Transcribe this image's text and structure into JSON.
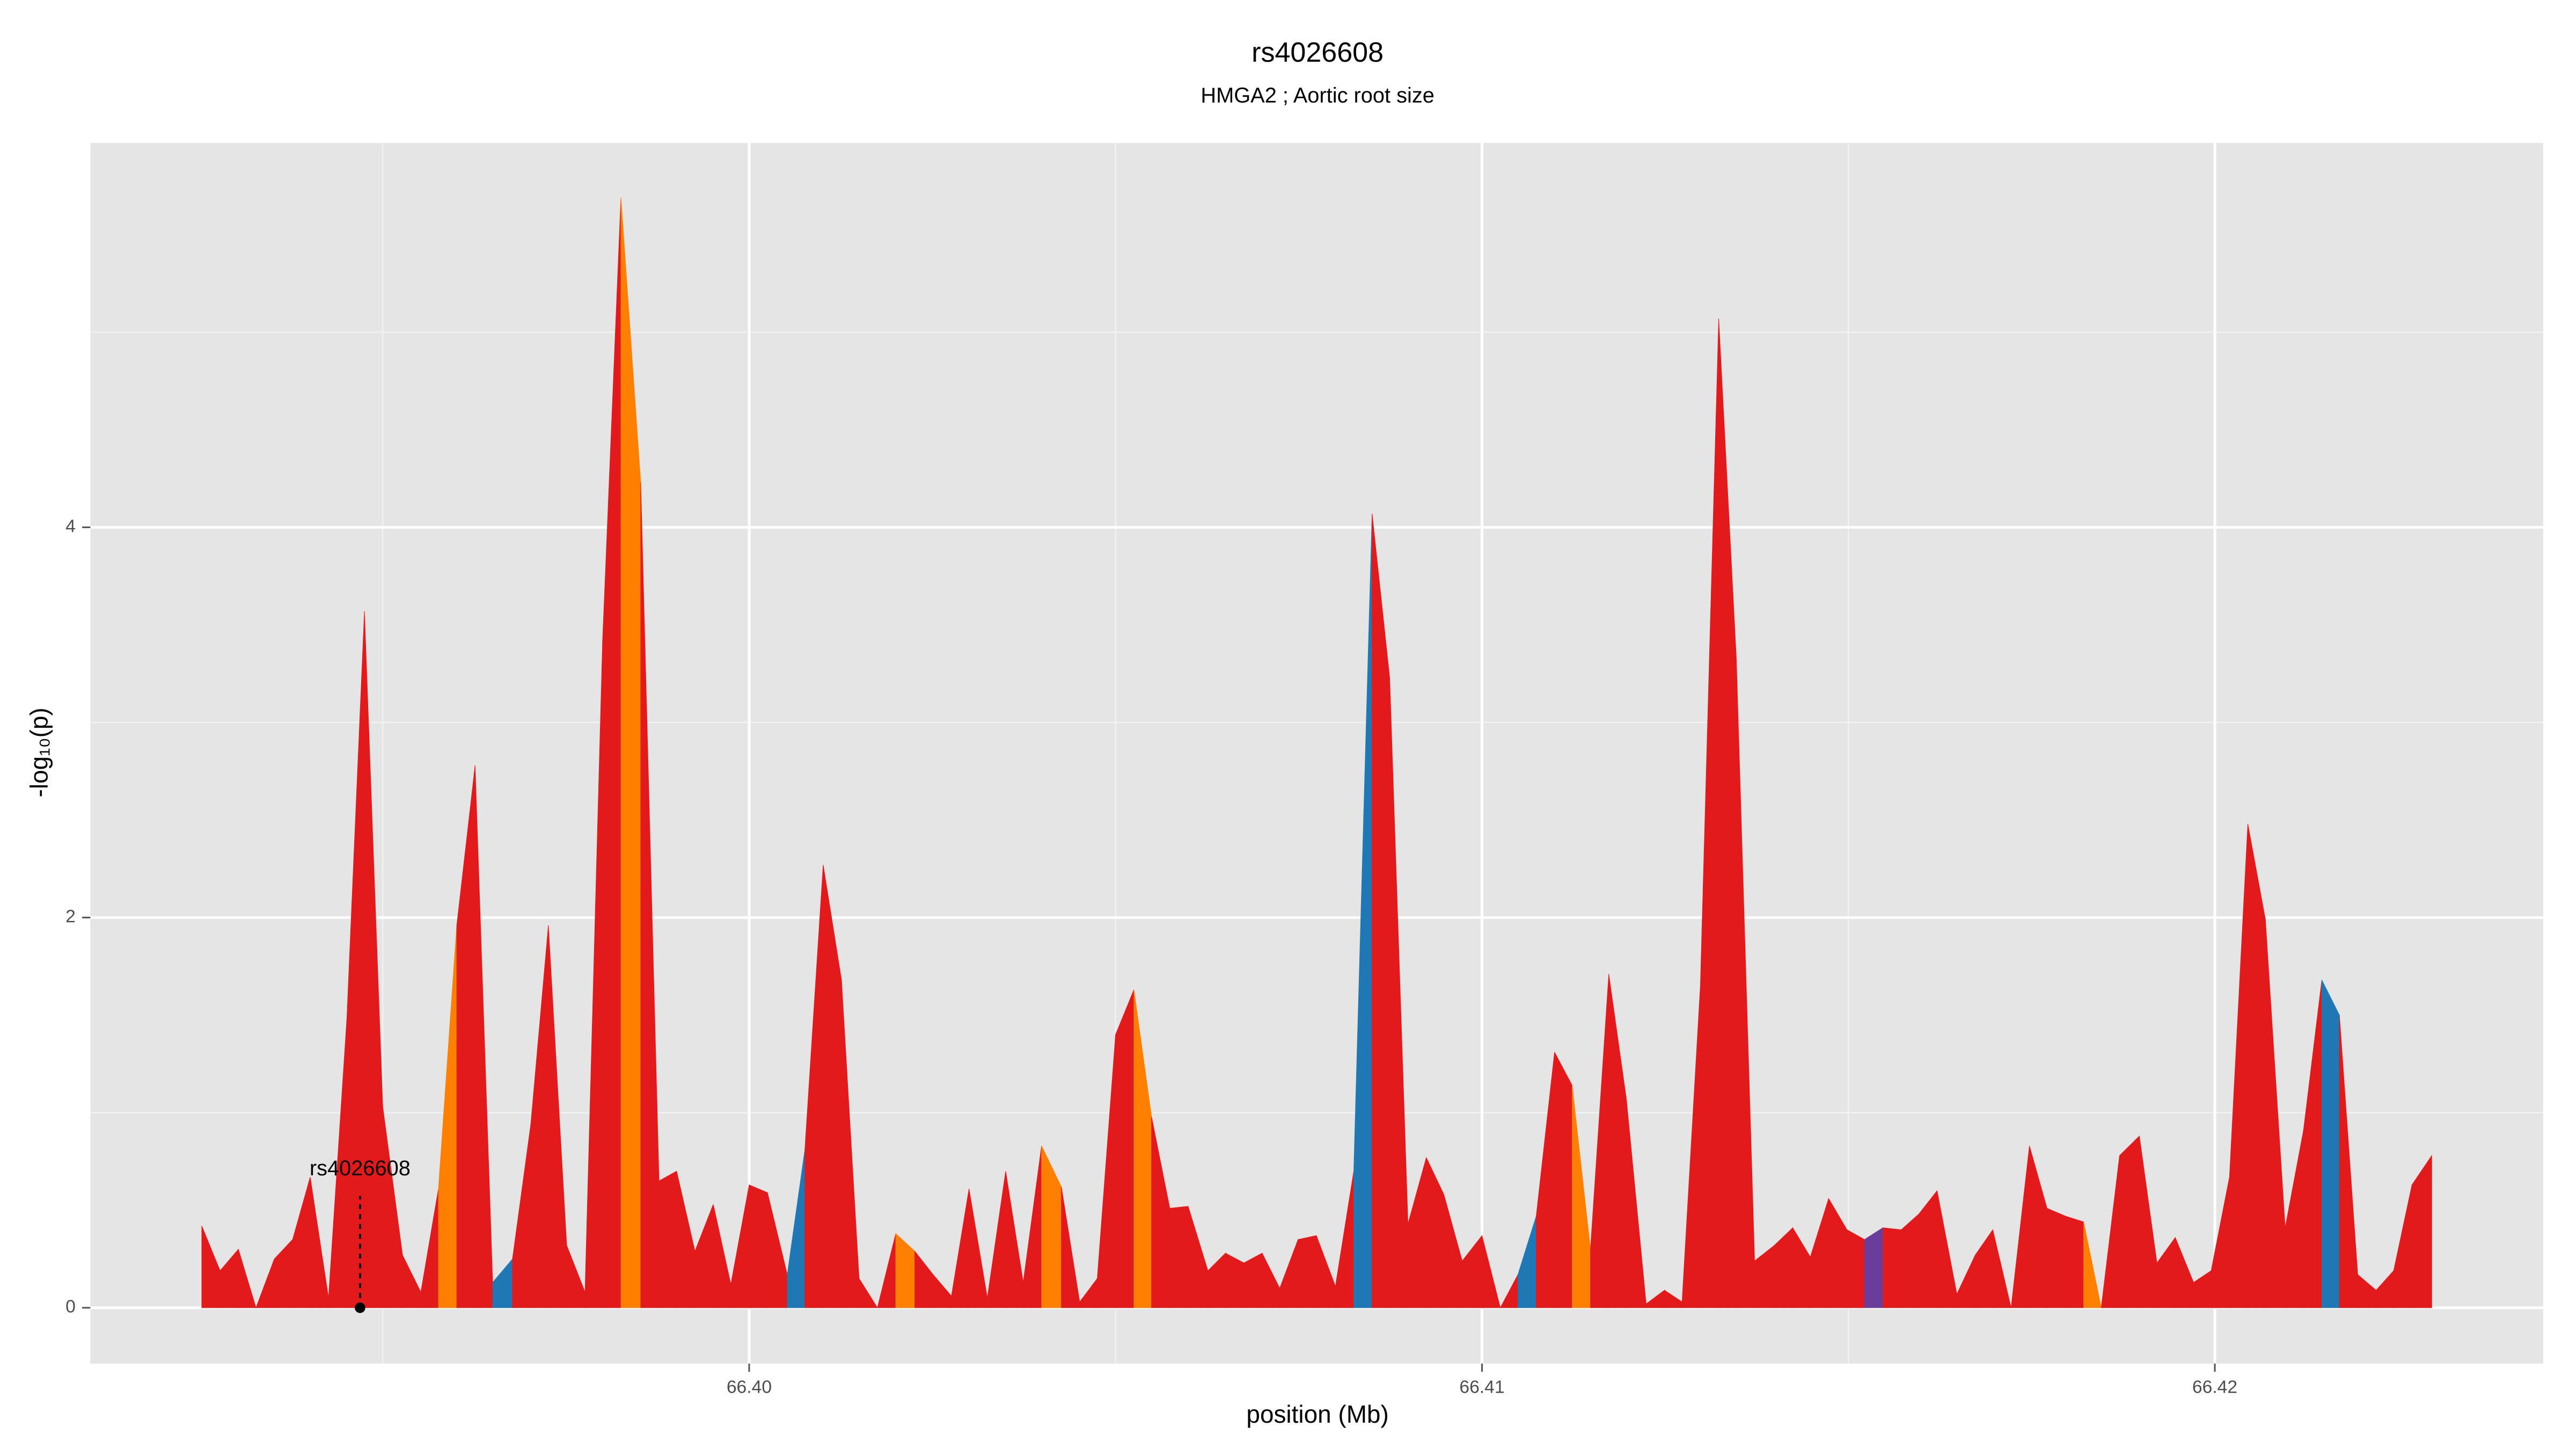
{
  "chart_data": {
    "type": "area",
    "title": "rs4026608",
    "subtitle": "HMGA2 ; Aortic root size",
    "x_label": "position (Mb)",
    "y_label": "-log₁₀(p)",
    "xlim": [
      66.39101,
      66.42448
    ],
    "ylim": [
      -0.286,
      5.97
    ],
    "xticks": [
      {
        "value": 66.4,
        "label": "66.40"
      },
      66.41,
      66.42
    ],
    "x_minor_ticks": [
      66.395,
      66.405,
      66.415
    ],
    "yticks": [
      0,
      2,
      4
    ],
    "y_minor_ticks": [
      1,
      3,
      5
    ],
    "grid": true,
    "background": "#e5e5e5",
    "annotation": {
      "text": "rs4026608",
      "x": 66.39469
    },
    "x": [
      66.39253,
      66.39278,
      66.39303,
      66.39327,
      66.39352,
      66.39377,
      66.39401,
      66.39426,
      66.39451,
      66.39475,
      66.395,
      66.39527,
      66.39552,
      66.39576,
      66.39601,
      66.39626,
      66.3965,
      66.39677,
      66.39702,
      66.39726,
      66.39751,
      66.39776,
      66.398,
      66.39825,
      66.39852,
      66.39877,
      66.39901,
      66.39926,
      66.39951,
      66.39975,
      66.4,
      66.40025,
      66.40052,
      66.40076,
      66.40101,
      66.40126,
      66.4015,
      66.40175,
      66.402,
      66.40226,
      66.40251,
      66.40276,
      66.403,
      66.40325,
      66.4035,
      66.40374,
      66.40399,
      66.40426,
      66.40451,
      66.40475,
      66.405,
      66.40525,
      66.40549,
      66.40574,
      66.40599,
      66.40626,
      66.4065,
      66.40675,
      66.407,
      66.40724,
      66.40749,
      66.40774,
      66.408,
      66.40825,
      66.4085,
      66.40874,
      66.40899,
      66.40924,
      66.40948,
      66.40973,
      66.41,
      66.41025,
      66.41049,
      66.41074,
      66.41099,
      66.41123,
      66.41148,
      66.41173,
      66.41197,
      66.41224,
      66.41249,
      66.41273,
      66.41298,
      66.41323,
      66.41347,
      66.41372,
      66.41399,
      66.41424,
      66.41448,
      66.41473,
      66.41498,
      66.41522,
      66.41547,
      66.41572,
      66.41596,
      66.41621,
      66.41648,
      66.41673,
      66.41697,
      66.41722,
      66.41747,
      66.41771,
      66.41796,
      66.41821,
      66.41845,
      66.4187,
      66.41897,
      66.41921,
      66.41946,
      66.41971,
      66.41995,
      66.4202,
      66.42045,
      66.42069,
      66.42096,
      66.42121,
      66.42146,
      66.4217,
      66.42195,
      66.4222,
      66.42244,
      66.42269,
      66.42296
    ],
    "values": [
      0.42,
      0.19,
      0.3,
      0,
      0.25,
      0.35,
      0.67,
      0.05,
      1.48,
      3.57,
      1.03,
      0.27,
      0.08,
      0.61,
      1.96,
      2.78,
      0.13,
      0.25,
      0.94,
      1.96,
      0.32,
      0.08,
      3.42,
      5.69,
      4.23,
      0.65,
      0.7,
      0.29,
      0.53,
      0.12,
      0.63,
      0.59,
      0.17,
      0.81,
      2.27,
      1.68,
      0.15,
      0,
      0.38,
      0.29,
      0.17,
      0.06,
      0.61,
      0.05,
      0.7,
      0.13,
      0.83,
      0.62,
      0.03,
      0.15,
      1.4,
      1.63,
      0.98,
      0.51,
      0.52,
      0.19,
      0.28,
      0.23,
      0.28,
      0.1,
      0.35,
      0.37,
      0.11,
      0.7,
      4.07,
      3.23,
      0.43,
      0.77,
      0.58,
      0.24,
      0.37,
      0,
      0.17,
      0.47,
      1.31,
      1.14,
      0.3,
      1.71,
      1.07,
      0.02,
      0.09,
      0.03,
      1.65,
      5.07,
      3.33,
      0.24,
      0.32,
      0.41,
      0.26,
      0.56,
      0.4,
      0.35,
      0.41,
      0.4,
      0.48,
      0.6,
      0.07,
      0.27,
      0.4,
      0,
      0.83,
      0.51,
      0.47,
      0.44,
      0,
      0.78,
      0.88,
      0.23,
      0.36,
      0.13,
      0.19,
      0.67,
      2.48,
      1.99,
      0.41,
      0.91,
      1.68,
      1.5,
      0.17,
      0.09,
      0.19,
      0.63,
      0.78
    ],
    "colors": [
      "#e31a1c",
      "#e31a1c",
      "#e31a1c",
      "#e31a1c",
      "#e31a1c",
      "#e31a1c",
      "#e31a1c",
      "#e31a1c",
      "#e31a1c",
      "#e31a1c",
      "#e31a1c",
      "#e31a1c",
      "#e31a1c",
      "#ff7f00",
      "#e31a1c",
      "#e31a1c",
      "#1f78b4",
      "#e31a1c",
      "#e31a1c",
      "#e31a1c",
      "#e31a1c",
      "#e31a1c",
      "#e31a1c",
      "#ff7f00",
      "#e31a1c",
      "#e31a1c",
      "#e31a1c",
      "#e31a1c",
      "#e31a1c",
      "#e31a1c",
      "#e31a1c",
      "#e31a1c",
      "#1f78b4",
      "#e31a1c",
      "#e31a1c",
      "#e31a1c",
      "#e31a1c",
      "#e31a1c",
      "#ff7f00",
      "#e31a1c",
      "#e31a1c",
      "#e31a1c",
      "#e31a1c",
      "#e31a1c",
      "#e31a1c",
      "#e31a1c",
      "#ff7f00",
      "#e31a1c",
      "#e31a1c",
      "#e31a1c",
      "#e31a1c",
      "#ff7f00",
      "#e31a1c",
      "#e31a1c",
      "#e31a1c",
      "#e31a1c",
      "#e31a1c",
      "#e31a1c",
      "#e31a1c",
      "#e31a1c",
      "#e31a1c",
      "#e31a1c",
      "#e31a1c",
      "#1f78b4",
      "#e31a1c",
      "#e31a1c",
      "#e31a1c",
      "#e31a1c",
      "#e31a1c",
      "#e31a1c",
      "#e31a1c",
      "#e31a1c",
      "#1f78b4",
      "#e31a1c",
      "#e31a1c",
      "#ff7f00",
      "#e31a1c",
      "#e31a1c",
      "#e31a1c",
      "#e31a1c",
      "#e31a1c",
      "#e31a1c",
      "#e31a1c",
      "#e31a1c",
      "#e31a1c",
      "#e31a1c",
      "#e31a1c",
      "#e31a1c",
      "#e31a1c",
      "#e31a1c",
      "#e31a1c",
      "#6a3d9a",
      "#e31a1c",
      "#e31a1c",
      "#e31a1c",
      "#e31a1c",
      "#e31a1c",
      "#e31a1c",
      "#e31a1c",
      "#e31a1c",
      "#e31a1c",
      "#e31a1c",
      "#e31a1c",
      "#ff7f00",
      "#e31a1c",
      "#e31a1c",
      "#e31a1c",
      "#e31a1c",
      "#e31a1c",
      "#e31a1c",
      "#e31a1c",
      "#e31a1c",
      "#e31a1c",
      "#e31a1c",
      "#e31a1c",
      "#e31a1c",
      "#1f78b4",
      "#e31a1c",
      "#e31a1c",
      "#e31a1c",
      "#e31a1c",
      "#e31a1c",
      "#e31a1c"
    ]
  }
}
